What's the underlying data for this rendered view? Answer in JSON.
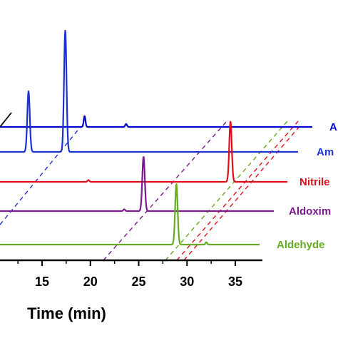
{
  "chart_data": {
    "type": "line",
    "xlabel": "Time (min)",
    "x_ticks": [
      "15",
      "20",
      "25",
      "30",
      "35"
    ],
    "xlim": [
      10,
      37
    ],
    "series": [
      {
        "name": "A",
        "color": "#0000cc",
        "baseline_offset": 4,
        "peaks": [
          {
            "x": 19.4,
            "height": 0.18
          },
          {
            "x": 23.7,
            "height": 0.05
          }
        ]
      },
      {
        "name": "Am",
        "color": "#1a33cc",
        "baseline_offset": 3,
        "peaks": [
          {
            "x": 13.6,
            "height": 1.0
          },
          {
            "x": 17.4,
            "height": 2.0
          }
        ]
      },
      {
        "name": "Nitrile",
        "color": "#e0101a",
        "baseline_offset": 2,
        "peaks": [
          {
            "x": 19.8,
            "height": 0.03
          },
          {
            "x": 34.5,
            "height": 1.0
          }
        ]
      },
      {
        "name": "Aldoxim",
        "color": "#7a1a8c",
        "baseline_offset": 1,
        "peaks": [
          {
            "x": 23.5,
            "height": 0.03
          },
          {
            "x": 25.5,
            "height": 0.9
          }
        ]
      },
      {
        "name": "Aldehyde",
        "color": "#66aa22",
        "baseline_offset": 0,
        "peaks": [
          {
            "x": 28.9,
            "height": 1.0
          },
          {
            "x": 32.0,
            "height": 0.04
          }
        ]
      }
    ]
  }
}
